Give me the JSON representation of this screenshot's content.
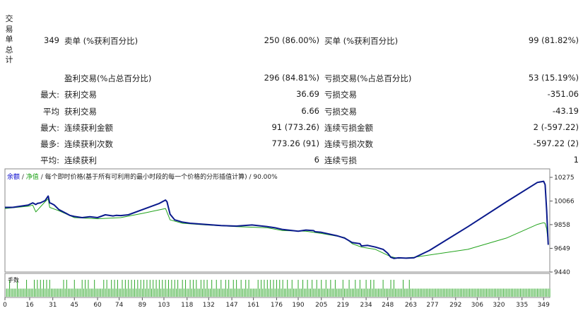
{
  "side_label": "交易单总计",
  "summary": {
    "total_trades": "349",
    "short_label": "卖单 (%获利百分比)",
    "short_value": "250 (86.00%)",
    "long_label": "买单 (%获利百分比)",
    "long_value": "99 (81.82%)",
    "rows": [
      {
        "prefix": "",
        "left_label": "盈利交易(%占总百分比)",
        "left_value": "296 (84.81%)",
        "right_label": "亏损交易(%占总百分比)",
        "right_value": "53 (15.19%)"
      },
      {
        "prefix": "最大:",
        "left_label": "获利交易",
        "left_value": "36.69",
        "right_label": "亏损交易",
        "right_value": "-351.06"
      },
      {
        "prefix": "平均",
        "left_label": "获利交易",
        "left_value": "6.66",
        "right_label": "亏损交易",
        "right_value": "-43.19"
      },
      {
        "prefix": "最大:",
        "left_label": "连续获利金额",
        "left_value": "91 (773.26)",
        "right_label": "连续亏损金额",
        "right_value": "2 (-597.22)"
      },
      {
        "prefix": "最多:",
        "left_label": "连续获利次数",
        "left_value": "773.26 (91)",
        "right_label": "连续亏损次数",
        "right_value": "-597.22 (2)"
      },
      {
        "prefix": "平均:",
        "left_label": "连续获利",
        "left_value": "6",
        "right_label": "连续亏损",
        "right_value": "1"
      }
    ]
  },
  "chart_data": {
    "type": "line",
    "legend": {
      "balance": "余额",
      "sep1": " / ",
      "equity": "净值",
      "sep2": " / ",
      "note": "每个即时价格(基于所有可利用的最小时段的每一个价格的分形插值计算) / 90.00%"
    },
    "volume_label": "手数",
    "colors": {
      "balance": "#0a1a8c",
      "equity": "#22a31c",
      "volume": "#2fa82a",
      "legend_balance": "#0000cc"
    },
    "ylim": [
      9440,
      10275
    ],
    "xlim": [
      0,
      353
    ],
    "y_ticks": [
      10275,
      10066,
      9858,
      9649,
      9440
    ],
    "x_ticks": [
      0,
      16,
      31,
      45,
      60,
      74,
      89,
      103,
      118,
      132,
      147,
      161,
      176,
      190,
      205,
      219,
      234,
      248,
      263,
      277,
      292,
      306,
      320,
      335,
      349
    ],
    "series": [
      {
        "name": "余额",
        "x": [
          0,
          5,
          10,
          15,
          18,
          20,
          21,
          23,
          26,
          27,
          28,
          29,
          30,
          32,
          35,
          40,
          42,
          45,
          50,
          55,
          60,
          65,
          70,
          72,
          75,
          80,
          90,
          100,
          104,
          105,
          107,
          110,
          115,
          120,
          130,
          140,
          150,
          160,
          170,
          175,
          180,
          190,
          195,
          200,
          201,
          205,
          215,
          220,
          225,
          230,
          231,
          235,
          240,
          245,
          248,
          250,
          252,
          255,
          260,
          265,
          275,
          300,
          325,
          345,
          349,
          350,
          351,
          352
        ],
        "y": [
          10010,
          10010,
          10020,
          10030,
          10050,
          10035,
          10045,
          10050,
          10070,
          10090,
          10110,
          10050,
          10045,
          10030,
          9990,
          9955,
          9940,
          9930,
          9920,
          9928,
          9920,
          9945,
          9935,
          9940,
          9938,
          9945,
          9995,
          10045,
          10075,
          10060,
          9950,
          9900,
          9880,
          9870,
          9860,
          9850,
          9845,
          9855,
          9840,
          9830,
          9815,
          9800,
          9810,
          9805,
          9795,
          9790,
          9760,
          9740,
          9700,
          9690,
          9670,
          9675,
          9660,
          9640,
          9605,
          9570,
          9560,
          9565,
          9562,
          9565,
          9630,
          9840,
          10060,
          10230,
          10240,
          10210,
          9980,
          9680
        ]
      },
      {
        "name": "净值",
        "x": [
          0,
          15,
          18,
          20,
          26,
          28,
          29,
          35,
          45,
          60,
          75,
          90,
          104,
          107,
          115,
          130,
          150,
          170,
          180,
          195,
          205,
          220,
          225,
          231,
          240,
          250,
          255,
          265,
          300,
          325,
          345,
          349,
          350,
          351,
          352
        ],
        "y": [
          10000,
          10020,
          10030,
          9970,
          10060,
          10085,
          10010,
          9980,
          9920,
          9910,
          9920,
          9960,
          10000,
          9900,
          9870,
          9855,
          9840,
          9830,
          9805,
          9800,
          9780,
          9745,
          9690,
          9660,
          9640,
          9575,
          9560,
          9570,
          9640,
          9740,
          9860,
          9875,
          9870,
          9820,
          9700
        ]
      }
    ],
    "volume": {
      "note": "tall bars where heights repeat; interleaved with short bars",
      "tall_x": [
        3,
        8,
        14,
        19,
        21,
        23,
        25,
        27,
        29,
        38,
        40,
        45,
        50,
        52,
        54,
        58,
        64,
        66,
        69,
        71,
        73,
        76,
        78,
        80,
        82,
        84,
        86,
        88,
        90,
        92,
        94,
        96,
        98,
        100,
        102,
        104,
        106,
        108,
        110,
        112,
        115,
        117,
        120,
        122,
        124,
        127,
        129,
        131,
        134,
        137,
        140,
        143,
        145,
        148,
        150,
        153,
        156,
        158,
        164,
        166,
        168,
        170,
        172,
        174,
        176,
        178,
        180,
        183,
        186,
        190,
        193,
        196,
        199,
        202,
        205,
        208,
        211,
        214,
        219,
        223,
        227,
        230,
        234,
        237,
        239,
        245,
        250,
        252,
        258,
        262
      ],
      "tall_value": 1.0,
      "short_value": 0.48
    }
  }
}
